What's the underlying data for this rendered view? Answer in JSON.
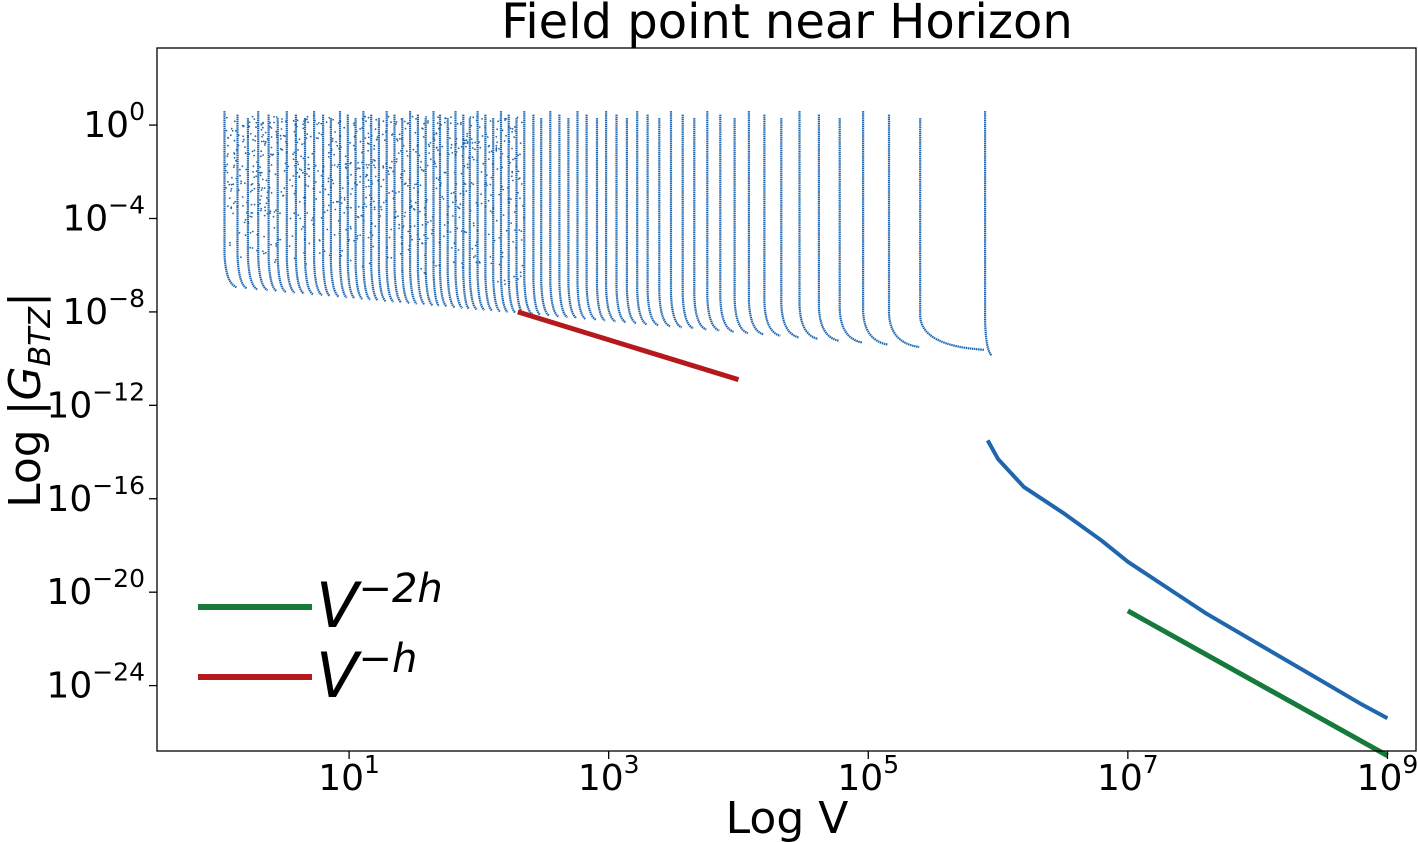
{
  "chart_data": {
    "type": "scatter",
    "title": "Field point near Horizon",
    "xlabel": "Log V",
    "ylabel_prefix": "Log |",
    "ylabel_symbol": "G",
    "ylabel_subscript": "BTZ",
    "ylabel_suffix": "|",
    "xscale": "log",
    "yscale": "log",
    "xlim_exp": [
      -0.48,
      9.22
    ],
    "ylim_exp": [
      -26.8,
      3.3
    ],
    "x_ticks": [
      {
        "base": "10",
        "exp": "1",
        "value_exp": 1
      },
      {
        "base": "10",
        "exp": "3",
        "value_exp": 3
      },
      {
        "base": "10",
        "exp": "5",
        "value_exp": 5
      },
      {
        "base": "10",
        "exp": "7",
        "value_exp": 7
      },
      {
        "base": "10",
        "exp": "9",
        "value_exp": 9
      }
    ],
    "y_ticks": [
      {
        "base": "10",
        "exp": "0",
        "value_exp": 0
      },
      {
        "base": "10",
        "exp": "−4",
        "value_exp": -4
      },
      {
        "base": "10",
        "exp": "−8",
        "value_exp": -8
      },
      {
        "base": "10",
        "exp": "−12",
        "value_exp": -12
      },
      {
        "base": "10",
        "exp": "−16",
        "value_exp": -16
      },
      {
        "base": "10",
        "exp": "−20",
        "value_exp": -20
      },
      {
        "base": "10",
        "exp": "−24",
        "value_exp": -24
      }
    ],
    "series": [
      {
        "name": "G_BTZ",
        "color": "#1f66ad",
        "marker": "dot",
        "spikes_x_exp": [
          0.04,
          0.14,
          0.22,
          0.3,
          0.38,
          0.45,
          0.52,
          0.59,
          0.66,
          0.73,
          0.8,
          0.86,
          0.93,
          0.99,
          1.05,
          1.11,
          1.17,
          1.23,
          1.29,
          1.35,
          1.41,
          1.47,
          1.53,
          1.59,
          1.65,
          1.7,
          1.76,
          1.82,
          1.88,
          1.93,
          1.99,
          2.05,
          2.11,
          2.17,
          2.23,
          2.29,
          2.35,
          2.42,
          2.48,
          2.55,
          2.62,
          2.69,
          2.76,
          2.83,
          2.91,
          2.98,
          3.06,
          3.14,
          3.22,
          3.3,
          3.39,
          3.48,
          3.57,
          3.66,
          3.76,
          3.86,
          3.97,
          4.08,
          4.2,
          4.33,
          4.47,
          4.62,
          4.78,
          4.96,
          5.16,
          5.4,
          5.9
        ],
        "peak_y_exp": 0.6,
        "envelope_slope": -0.5,
        "envelope_intercept": -6.75,
        "tail": {
          "x_exp": [
            5.92,
            6.0,
            6.2,
            6.5,
            6.8,
            7.0,
            7.3,
            7.6,
            8.0,
            8.4,
            8.8,
            9.0
          ],
          "y_exp": [
            -13.5,
            -14.3,
            -15.5,
            -16.6,
            -17.8,
            -18.7,
            -19.8,
            -20.9,
            -22.2,
            -23.5,
            -24.8,
            -25.4
          ]
        }
      },
      {
        "name": "V^{-2h}",
        "color": "#177a3c",
        "x_exp": [
          7.0,
          9.0
        ],
        "y_exp": [
          -20.8,
          -27.0
        ]
      },
      {
        "name": "V^{-h}",
        "color": "#b5191d",
        "x_exp": [
          2.3,
          4.0
        ],
        "y_exp": [
          -8.0,
          -10.9
        ]
      }
    ],
    "legend": {
      "placement": "lower-left",
      "entries": [
        {
          "base": "V",
          "exp": "−2h",
          "color": "#177a3c"
        },
        {
          "base": "V",
          "exp": "−h",
          "color": "#b5191d"
        }
      ]
    }
  }
}
